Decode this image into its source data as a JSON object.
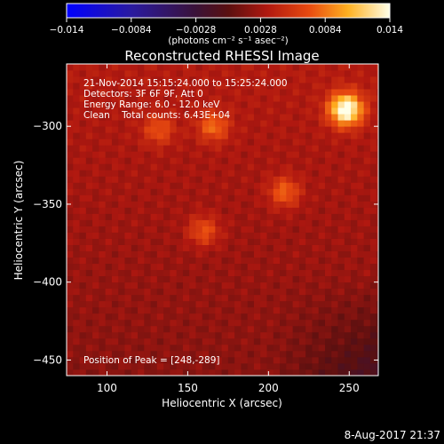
{
  "chart_data": {
    "type": "heatmap",
    "title": "Reconstructed RHESSI Image",
    "xlabel": "Heliocentric X (arcsec)",
    "ylabel": "Heliocentric Y (arcsec)",
    "xlim": [
      75,
      268
    ],
    "ylim": [
      -460,
      -260
    ],
    "xticks": [
      100,
      150,
      200,
      250
    ],
    "yticks": [
      -300,
      -350,
      -400,
      -450
    ],
    "colorbar": {
      "range": [
        -0.014,
        0.014
      ],
      "ticks": [
        "-0.014",
        "-0.0084",
        "-0.0028",
        "0.0028",
        "0.0084",
        "0.014"
      ],
      "label": "(photons cm⁻² s⁻¹ asec⁻²)"
    },
    "annotations": [
      "21-Nov-2014 15:15:24.000 to 15:25:24.000",
      "Detectors: 3F 6F 9F, Att 0",
      "Energy Range: 6.0 - 12.0 keV",
      "Clean    Total counts: 6.43E+04"
    ],
    "peak_label": "Position of Peak = [248,-289]",
    "peak": [
      248,
      -289
    ],
    "sources": [
      {
        "x": 248,
        "y": -289,
        "value": 0.014
      },
      {
        "x": 166,
        "y": -300,
        "value": 0.007
      },
      {
        "x": 132,
        "y": -302,
        "value": 0.006
      },
      {
        "x": 210,
        "y": -342,
        "value": 0.007
      },
      {
        "x": 160,
        "y": -367,
        "value": 0.0065
      }
    ]
  },
  "footer": {
    "timestamp": "8-Aug-2017 21:37"
  },
  "colors": {
    "background": "#000000",
    "text": "#ffffff"
  }
}
